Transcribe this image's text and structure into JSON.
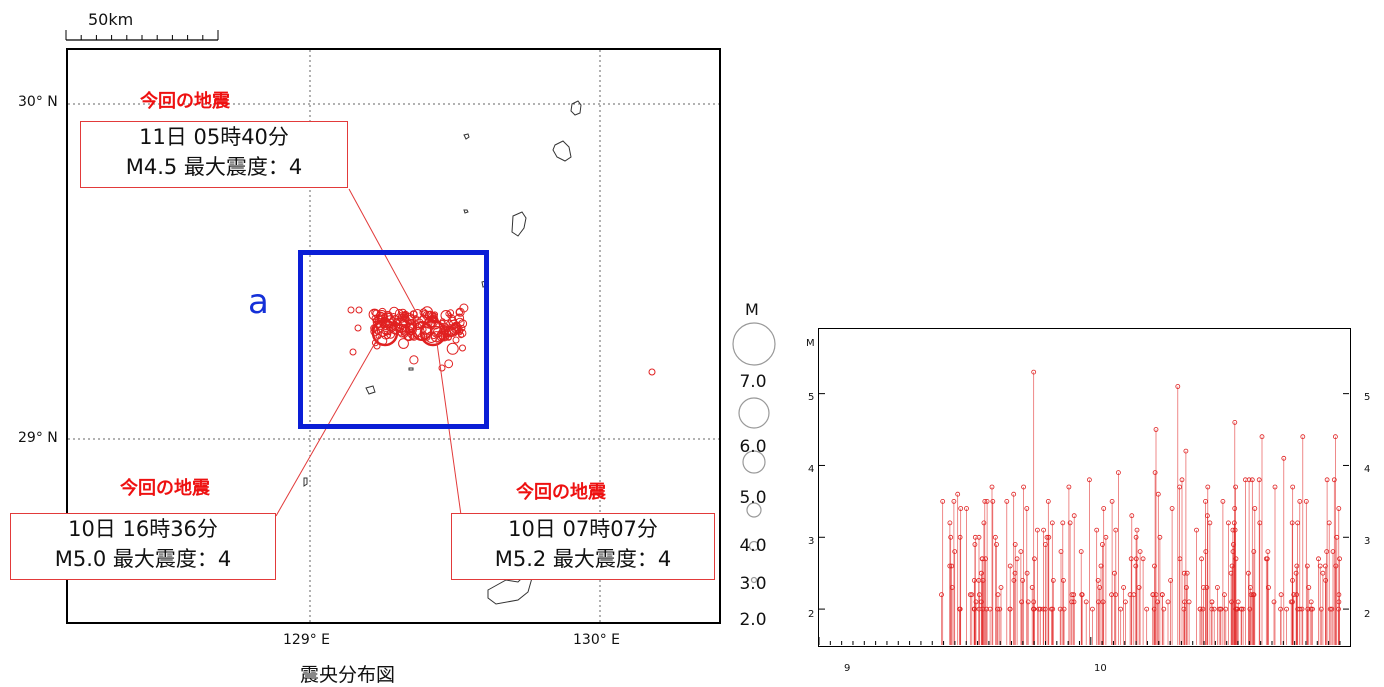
{
  "scale_bar": {
    "label": "50km"
  },
  "map": {
    "lat_labels": [
      "30° N",
      "29° N"
    ],
    "lon_labels": [
      "129° E",
      "130° E"
    ],
    "region_label": "a",
    "caption": "震央分布図",
    "colors": {
      "epicenter": "#e02020",
      "region_box": "#0a1ed6",
      "annotation": "#ee1111"
    }
  },
  "annotations": [
    {
      "banner": "今回の地震",
      "line1": "11日 05時40分",
      "line2": "M4.5 最大震度：4"
    },
    {
      "banner": "今回の地震",
      "line1": "10日 16時36分",
      "line2": "M5.0 最大震度：4"
    },
    {
      "banner": "今回の地震",
      "line1": "10日 07時07分",
      "line2": "M5.2 最大震度：4"
    }
  ],
  "legend": {
    "title": "M",
    "entries": [
      {
        "label": "7.0",
        "magnitude": 7.0
      },
      {
        "label": "6.0",
        "magnitude": 6.0
      },
      {
        "label": "5.0",
        "magnitude": 5.0
      },
      {
        "label": "4.0",
        "magnitude": 4.0
      },
      {
        "label": "3.0",
        "magnitude": 3.0
      },
      {
        "label": "2.0",
        "magnitude": 2.0
      }
    ]
  },
  "chart_data": {
    "type": "scatter",
    "style": "stem",
    "ylabel": "M",
    "x_tick_labels": [
      "9",
      "10"
    ],
    "y_tick_labels": [
      "2",
      "3",
      "4",
      "5"
    ],
    "xlim": [
      9.0,
      10.95
    ],
    "ylim": [
      1.5,
      5.9
    ],
    "color": "#e02020",
    "largest_events": [
      {
        "x": 9.79,
        "y": 5.3
      },
      {
        "x": 10.32,
        "y": 5.1
      },
      {
        "x": 10.53,
        "y": 4.6
      },
      {
        "x": 10.24,
        "y": 4.5
      },
      {
        "x": 10.78,
        "y": 4.4
      },
      {
        "x": 10.9,
        "y": 4.4
      },
      {
        "x": 10.63,
        "y": 4.4
      },
      {
        "x": 10.71,
        "y": 4.1
      },
      {
        "x": 10.35,
        "y": 4.2
      }
    ]
  }
}
